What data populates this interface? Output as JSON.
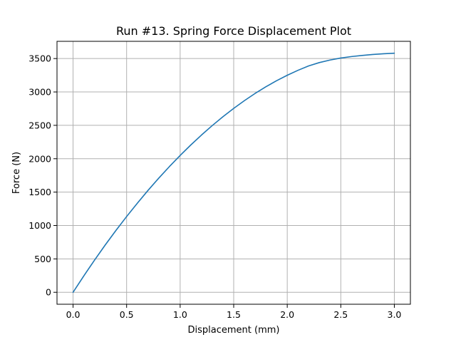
{
  "chart_data": {
    "type": "line",
    "title": "Run #13. Spring Force Displacement Plot",
    "xlabel": "Displacement (mm)",
    "ylabel": "Force (N)",
    "xlim": [
      -0.15,
      3.15
    ],
    "ylim": [
      -179,
      3758
    ],
    "xticks": [
      0.0,
      0.5,
      1.0,
      1.5,
      2.0,
      2.5,
      3.0
    ],
    "xtick_labels": [
      "0.0",
      "0.5",
      "1.0",
      "1.5",
      "2.0",
      "2.5",
      "3.0"
    ],
    "yticks": [
      0,
      500,
      1000,
      1500,
      2000,
      2500,
      3000,
      3500
    ],
    "ytick_labels": [
      "0",
      "500",
      "1000",
      "1500",
      "2000",
      "2500",
      "3000",
      "3500"
    ],
    "grid": true,
    "series": [
      {
        "color": "#1f77b4",
        "x": [
          0.0,
          0.1,
          0.2,
          0.3,
          0.4,
          0.5,
          0.6,
          0.7,
          0.8,
          0.9,
          1.0,
          1.1,
          1.2,
          1.3,
          1.4,
          1.5,
          1.6,
          1.7,
          1.8,
          1.9,
          2.0,
          2.1,
          2.2,
          2.3,
          2.4,
          2.5,
          2.6,
          2.7,
          2.8,
          2.9,
          3.0
        ],
        "y": [
          0,
          245,
          481,
          708,
          925,
          1134,
          1334,
          1526,
          1709,
          1883,
          2049,
          2207,
          2356,
          2497,
          2630,
          2754,
          2870,
          2978,
          3077,
          3168,
          3250,
          3324,
          3390,
          3440,
          3478,
          3508,
          3530,
          3547,
          3561,
          3572,
          3580
        ]
      }
    ]
  }
}
